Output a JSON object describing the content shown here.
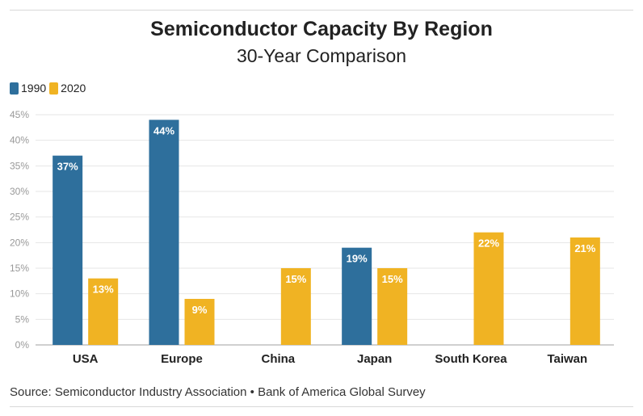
{
  "chart_data": {
    "type": "bar",
    "title": "Semiconductor Capacity By Region",
    "subtitle": "30-Year Comparison",
    "categories": [
      "USA",
      "Europe",
      "China",
      "Japan",
      "South Korea",
      "Taiwan"
    ],
    "series": [
      {
        "name": "1990",
        "color": "#2e6f9c",
        "values": [
          37,
          44,
          null,
          19,
          null,
          null
        ]
      },
      {
        "name": "2020",
        "color": "#f0b323",
        "values": [
          13,
          9,
          15,
          15,
          22,
          21
        ]
      }
    ],
    "ylim": [
      0,
      45
    ],
    "yticks": [
      0,
      5,
      10,
      15,
      20,
      25,
      30,
      35,
      40,
      45
    ],
    "ytick_labels": [
      "0%",
      "5%",
      "10%",
      "15%",
      "20%",
      "25%",
      "30%",
      "35%",
      "40%",
      "45%"
    ],
    "data_labels": [
      [
        "37%",
        "44%",
        null,
        "19%",
        null,
        null
      ],
      [
        "13%",
        "9%",
        "15%",
        "15%",
        "22%",
        "21%"
      ]
    ],
    "legend": "top-left",
    "grid": true,
    "source": "Source: Semiconductor Industry Association • Bank of America Global Survey"
  }
}
